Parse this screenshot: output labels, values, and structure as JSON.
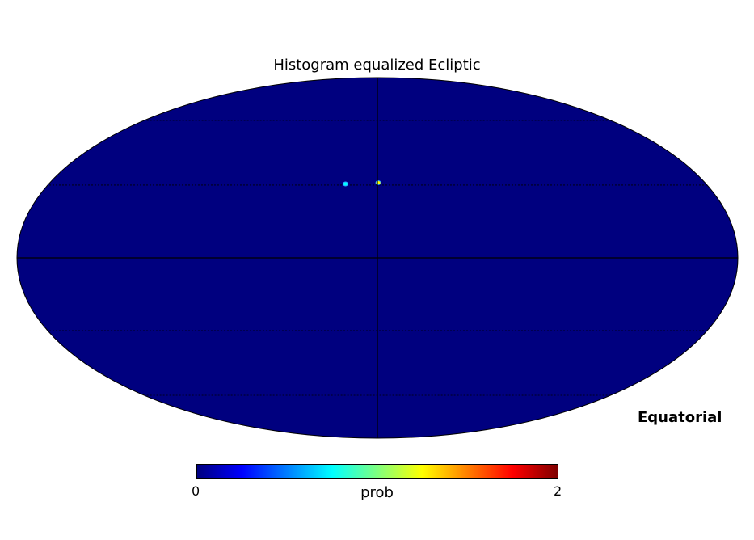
{
  "title": "Histogram equalized Ecliptic",
  "coord_system": "Equatorial",
  "projection": "mollweide",
  "colormap": {
    "name": "jet",
    "stops": [
      "#00007f",
      "#0000ff",
      "#007fff",
      "#00ffff",
      "#7fff7f",
      "#ffff00",
      "#ff7f00",
      "#ff0000",
      "#7f0000"
    ],
    "min_label": "0",
    "max_label": "2",
    "label": "prob"
  },
  "background_color": "#00007f",
  "graticule": true,
  "hotspots": [
    {
      "name": "hotspot-1",
      "lon_deg": -0.5,
      "lat_deg": 31,
      "color": "#ffff00"
    },
    {
      "name": "hotspot-2",
      "lon_deg": 17.5,
      "lat_deg": 30.5,
      "color": "#00ffff"
    }
  ]
}
